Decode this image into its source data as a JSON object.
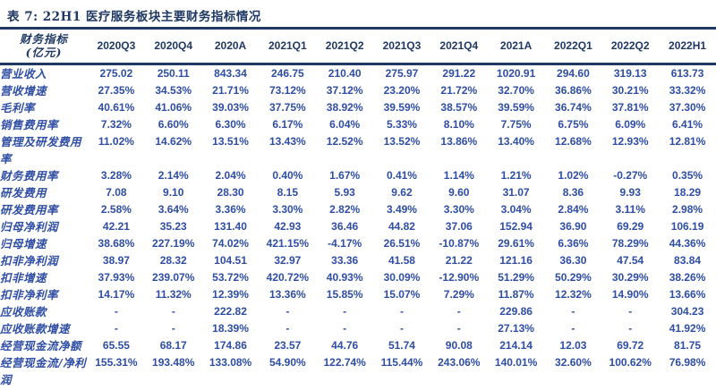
{
  "meta": {
    "title": "表 7: 22H1 医疗服务板块主要财务指标情况",
    "colors": {
      "navy": "#1f3864",
      "body_blue": "#2e4da4",
      "background": "#ffffff"
    }
  },
  "table": {
    "header_label_line1": "财务指标",
    "header_label_line2": "(亿元)",
    "columns": [
      "2020Q3",
      "2020Q4",
      "2020A",
      "2021Q1",
      "2021Q2",
      "2021Q3",
      "2021Q4",
      "2021A",
      "2022Q1",
      "2022Q2",
      "2022H1"
    ],
    "rows": [
      {
        "label": "营业收入",
        "values": [
          "275.02",
          "250.11",
          "843.34",
          "246.75",
          "210.40",
          "275.97",
          "291.22",
          "1020.91",
          "294.60",
          "319.13",
          "613.73"
        ]
      },
      {
        "label": "营收增速",
        "values": [
          "27.35%",
          "34.53%",
          "21.71%",
          "73.12%",
          "37.12%",
          "23.20%",
          "21.72%",
          "32.70%",
          "36.86%",
          "30.21%",
          "33.32%"
        ]
      },
      {
        "label": "毛利率",
        "values": [
          "40.61%",
          "41.06%",
          "39.03%",
          "37.75%",
          "38.92%",
          "39.59%",
          "38.57%",
          "39.59%",
          "36.74%",
          "37.81%",
          "37.30%"
        ]
      },
      {
        "label": "销售费用率",
        "values": [
          "7.32%",
          "6.60%",
          "6.30%",
          "6.17%",
          "6.04%",
          "5.33%",
          "8.10%",
          "7.75%",
          "6.75%",
          "6.09%",
          "6.41%"
        ]
      },
      {
        "label": "管理及研发费用率",
        "values": [
          "11.02%",
          "14.62%",
          "13.51%",
          "13.43%",
          "12.52%",
          "13.52%",
          "13.86%",
          "13.40%",
          "12.68%",
          "12.93%",
          "12.81%"
        ]
      },
      {
        "label": "财务费用率",
        "values": [
          "3.28%",
          "2.14%",
          "2.04%",
          "0.40%",
          "1.67%",
          "0.41%",
          "1.14%",
          "1.21%",
          "1.02%",
          "-0.27%",
          "0.35%"
        ]
      },
      {
        "label": "研发费用",
        "values": [
          "7.08",
          "9.10",
          "28.30",
          "8.15",
          "5.93",
          "9.62",
          "9.60",
          "31.07",
          "8.36",
          "9.93",
          "18.29"
        ]
      },
      {
        "label": "研发费用率",
        "values": [
          "2.58%",
          "3.64%",
          "3.36%",
          "3.30%",
          "2.82%",
          "3.49%",
          "3.30%",
          "3.04%",
          "2.84%",
          "3.11%",
          "2.98%"
        ]
      },
      {
        "label": "归母净利润",
        "values": [
          "42.21",
          "35.23",
          "131.40",
          "42.93",
          "36.46",
          "44.82",
          "37.06",
          "152.94",
          "36.90",
          "69.29",
          "106.19"
        ]
      },
      {
        "label": "归母增速",
        "values": [
          "38.68%",
          "227.19%",
          "74.02%",
          "421.15%",
          "-4.17%",
          "26.51%",
          "-10.87%",
          "29.61%",
          "6.36%",
          "78.29%",
          "44.36%"
        ]
      },
      {
        "label": "扣非净利润",
        "values": [
          "38.97",
          "28.32",
          "104.51",
          "32.97",
          "33.36",
          "41.58",
          "21.22",
          "121.16",
          "36.30",
          "47.54",
          "83.84"
        ]
      },
      {
        "label": "扣非增速",
        "values": [
          "37.93%",
          "239.07%",
          "53.72%",
          "420.72%",
          "40.93%",
          "30.09%",
          "-12.90%",
          "51.29%",
          "50.29%",
          "30.29%",
          "38.26%"
        ]
      },
      {
        "label": "扣非净利率",
        "values": [
          "14.17%",
          "11.32%",
          "12.39%",
          "13.36%",
          "15.85%",
          "15.07%",
          "7.29%",
          "11.87%",
          "12.32%",
          "14.90%",
          "13.66%"
        ]
      },
      {
        "label": "应收账款",
        "values": [
          "-",
          "-",
          "222.82",
          "-",
          "-",
          "-",
          "-",
          "229.86",
          "-",
          "-",
          "304.23"
        ]
      },
      {
        "label": "应收账款增速",
        "values": [
          "-",
          "-",
          "18.39%",
          "-",
          "-",
          "-",
          "-",
          "27.13%",
          "-",
          "-",
          "41.92%"
        ]
      },
      {
        "label": "经营现金流净额",
        "values": [
          "65.55",
          "68.17",
          "174.86",
          "23.57",
          "44.76",
          "51.74",
          "90.08",
          "214.14",
          "12.03",
          "69.72",
          "81.75"
        ]
      },
      {
        "label": "经营现金流/净利润",
        "values": [
          "155.31%",
          "193.48%",
          "133.08%",
          "54.90%",
          "122.74%",
          "115.44%",
          "243.06%",
          "140.01%",
          "32.60%",
          "100.62%",
          "76.98%"
        ]
      }
    ]
  }
}
